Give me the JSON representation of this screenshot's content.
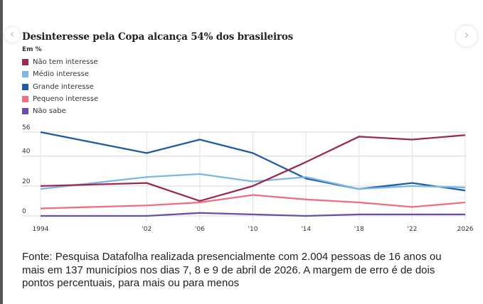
{
  "title": "Desinteresse pela Copa alcança 54% dos brasileiros",
  "subtitle": "Em %",
  "source": "Fonte: Pesquisa Datafolha realizada presencialmente com 2.004 pessoas de 16 anos ou mais em 137 municípios nos dias 7, 8 e 9 de abril de 2026. A margem de erro é de dois pontos percentuais, para mais ou para menos",
  "nav": {
    "prev_icon": "chevron-left-icon",
    "next_icon": "chevron-right-icon",
    "prev": "‹",
    "next": "›"
  },
  "chart_data": {
    "type": "line",
    "title": "Desinteresse pela Copa alcança 54% dos brasileiros",
    "ylabel": "Em %",
    "x": [
      1994,
      2002,
      2006,
      2010,
      2014,
      2018,
      2022,
      2026
    ],
    "x_tick_labels": [
      "1994",
      "'02",
      "'06",
      "'10",
      "'14",
      "'18",
      "'22",
      "2026"
    ],
    "y_ticks": [
      0,
      20,
      40,
      56
    ],
    "ylim": [
      0,
      56
    ],
    "grid": true,
    "legend_placement": "top-left",
    "series": [
      {
        "name": "Não tem interesse",
        "color": "#9b2a4f",
        "values": [
          20,
          22,
          10,
          20,
          36,
          53,
          51,
          54
        ]
      },
      {
        "name": "Médio interesse",
        "color": "#7bb8e6",
        "values": [
          18,
          26,
          28,
          23,
          26,
          18,
          20,
          19
        ]
      },
      {
        "name": "Grande interesse",
        "color": "#1f5ca6",
        "values": [
          56,
          42,
          51,
          42,
          25,
          18,
          22,
          17
        ]
      },
      {
        "name": "Pequeno interesse",
        "color": "#ef6f80",
        "values": [
          5,
          7,
          9,
          14,
          11,
          9,
          6,
          9
        ]
      },
      {
        "name": "Não sabe",
        "color": "#6b4fa6",
        "values": [
          0,
          0,
          2,
          1,
          0,
          1,
          1,
          1
        ]
      }
    ]
  }
}
